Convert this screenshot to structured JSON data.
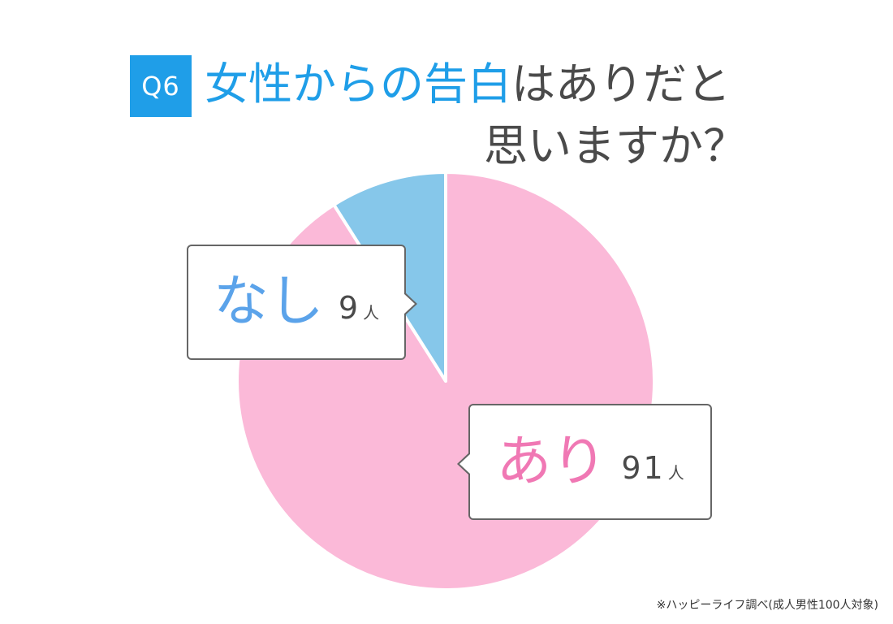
{
  "question_badge": "Q6",
  "title": {
    "highlight": "女性からの告白",
    "rest": "はありだと",
    "line2": "思いますか？"
  },
  "chart_data": {
    "type": "pie",
    "title": "女性からの告白はありだと思いますか？",
    "slices": [
      {
        "label": "あり",
        "value": 91,
        "unit": "人",
        "color": "#fbb9d8",
        "label_color": "#f078b4"
      },
      {
        "label": "なし",
        "value": 9,
        "unit": "人",
        "color": "#86c7ea",
        "label_color": "#5ba3ea"
      }
    ],
    "start_angle": "12 o'clock",
    "direction": "clockwise",
    "slice_border_color": "#ffffff"
  },
  "callouts": {
    "nashi": {
      "label": "なし",
      "count": "9",
      "unit": "人"
    },
    "ari": {
      "label": "あり",
      "count": "91",
      "unit": "人"
    }
  },
  "footnote": "※ハッピーライフ調べ(成人男性100人対象)"
}
